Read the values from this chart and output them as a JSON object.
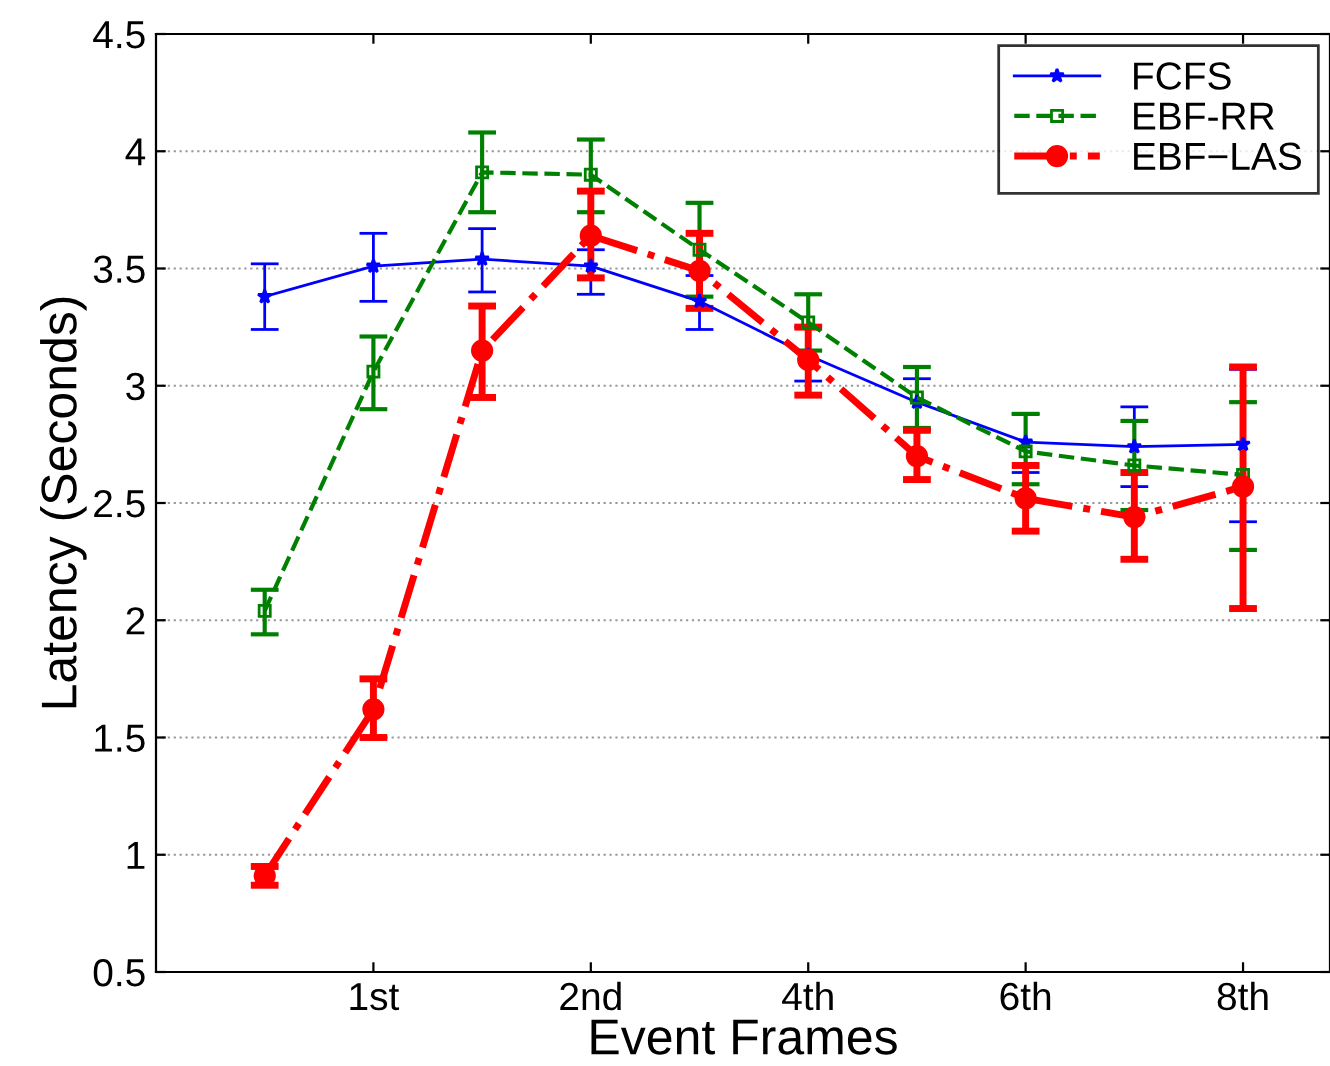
{
  "chart_data": {
    "type": "line",
    "xlabel": "Event Frames",
    "ylabel": "Latency (Seconds)",
    "categories": [
      null,
      "1st",
      null,
      "2nd",
      null,
      "4th",
      null,
      "6th",
      null,
      "8th"
    ],
    "ylim": [
      0.5,
      4.5
    ],
    "yticks": [
      0.5,
      1,
      1.5,
      2,
      2.5,
      3,
      3.5,
      4,
      {
        "value": 4.5,
        "label": "4.5"
      }
    ],
    "grid": "y",
    "legend": "top right",
    "series": [
      {
        "name": "FCFS",
        "color": "#0000ff",
        "marker": "star",
        "line_style": "solid",
        "values": [
          3.38,
          3.51,
          3.54,
          3.51,
          3.36,
          3.13,
          2.93,
          2.76,
          2.74,
          2.75
        ],
        "errors": [
          [
            3.24,
            3.52
          ],
          [
            3.36,
            3.65
          ],
          [
            3.4,
            3.67
          ],
          [
            3.39,
            3.58
          ],
          [
            3.24,
            3.47
          ],
          [
            3.02,
            3.25
          ],
          [
            2.81,
            3.03
          ],
          [
            2.63,
            2.88
          ],
          [
            2.57,
            2.91
          ],
          [
            2.42,
            3.07
          ]
        ]
      },
      {
        "name": "EBF-RR",
        "color": "#008000",
        "marker": "square",
        "line_style": "dashed",
        "values": [
          2.04,
          3.06,
          3.91,
          3.9,
          3.58,
          3.27,
          2.95,
          2.72,
          2.66,
          2.62
        ],
        "errors": [
          [
            1.94,
            2.13
          ],
          [
            2.9,
            3.21
          ],
          [
            3.74,
            4.08
          ],
          [
            3.74,
            4.05
          ],
          [
            3.38,
            3.78
          ],
          [
            3.15,
            3.39
          ],
          [
            2.82,
            3.08
          ],
          [
            2.58,
            2.88
          ],
          [
            2.47,
            2.85
          ],
          [
            2.3,
            2.93
          ]
        ]
      },
      {
        "name": "EBF−LAS",
        "color": "#ff0000",
        "marker": "circle",
        "line_style": "dashdot",
        "values": [
          0.91,
          1.62,
          3.15,
          3.64,
          3.49,
          3.11,
          2.7,
          2.52,
          2.44,
          2.57
        ],
        "errors": [
          [
            0.87,
            0.95
          ],
          [
            1.5,
            1.75
          ],
          [
            2.95,
            3.34
          ],
          [
            3.46,
            3.83
          ],
          [
            3.33,
            3.65
          ],
          [
            2.96,
            3.25
          ],
          [
            2.6,
            2.81
          ],
          [
            2.38,
            2.66
          ],
          [
            2.26,
            2.63
          ],
          [
            2.05,
            3.08
          ]
        ]
      }
    ]
  }
}
